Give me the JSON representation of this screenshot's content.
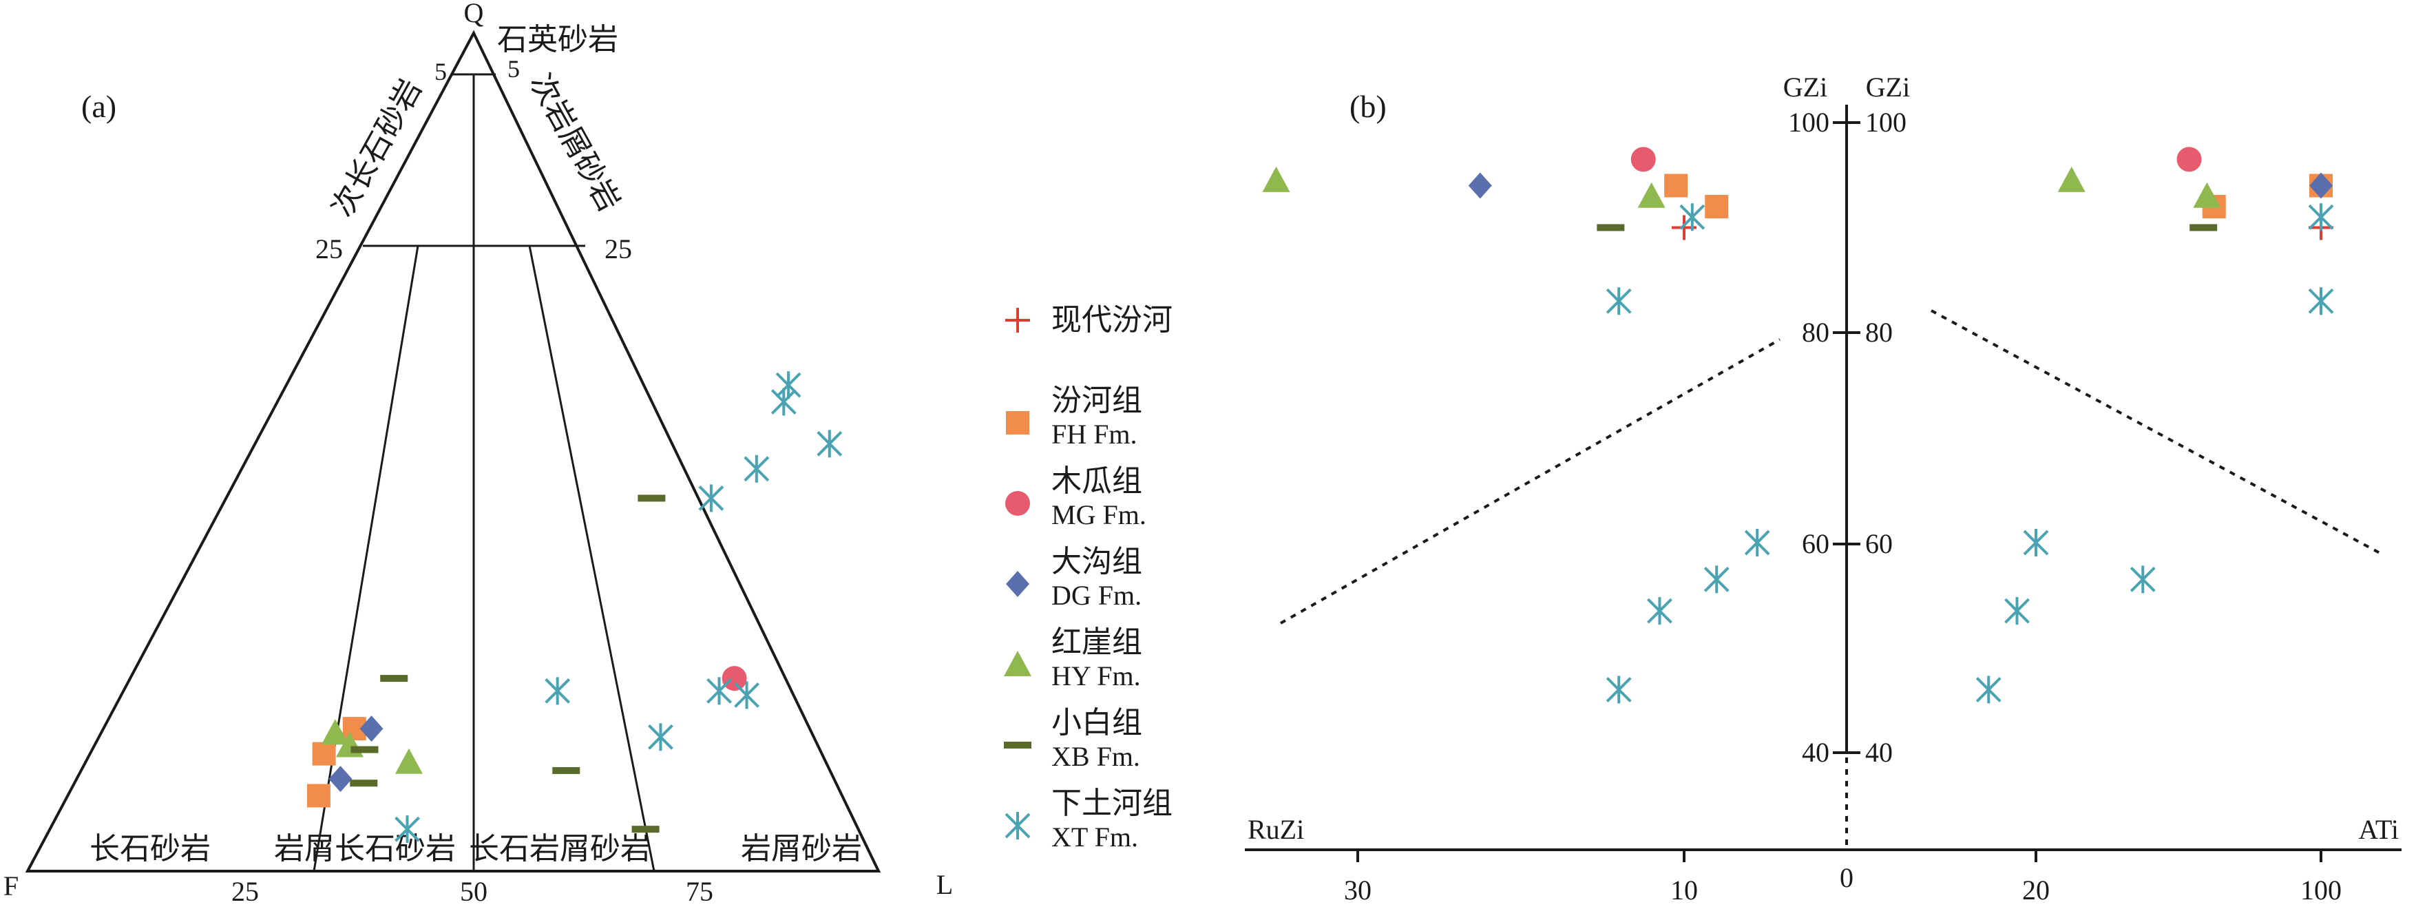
{
  "colors": {
    "present": "#e03c31",
    "FH": "#f28c4b",
    "MG": "#e85a6e",
    "DG": "#5b6fae",
    "HY": "#8fb84e",
    "XB": "#5a6a2a",
    "XT": "#4aa3b3"
  },
  "legend": [
    {
      "key": "present",
      "marker": "plus",
      "zh": "现代汾河",
      "en": ""
    },
    {
      "key": "FH",
      "marker": "square",
      "zh": "汾河组",
      "en": "FH Fm."
    },
    {
      "key": "MG",
      "marker": "circle",
      "zh": "木瓜组",
      "en": "MG Fm."
    },
    {
      "key": "DG",
      "marker": "diamond",
      "zh": "大沟组",
      "en": "DG Fm."
    },
    {
      "key": "HY",
      "marker": "triangle",
      "zh": "红崖组",
      "en": "HY Fm."
    },
    {
      "key": "XB",
      "marker": "dash",
      "zh": "小白组",
      "en": "XB Fm."
    },
    {
      "key": "XT",
      "marker": "asterisk",
      "zh": "下土河组",
      "en": "XT Fm."
    }
  ],
  "chart_data": [
    {
      "type": "scatter",
      "subtype": "ternary",
      "panel_label": "(a)",
      "vertices": {
        "top": "Q",
        "left": "F",
        "right": "L"
      },
      "base_ticks": [
        "25",
        "50",
        "75"
      ],
      "side_ticks": {
        "left": [
          "5",
          "25"
        ],
        "right": [
          "5",
          "25"
        ]
      },
      "fields": [
        "石英砂岩",
        "次长石砂岩",
        "次岩屑砂岩",
        "长石砂岩",
        "岩屑长石砂岩",
        "长石岩屑砂岩",
        "岩屑砂岩"
      ],
      "series": [
        {
          "key": "FH",
          "points": [
            [
              29.5,
              17
            ],
            [
              27.5,
              14
            ],
            [
              29.5,
              9
            ]
          ]
        },
        {
          "key": "MG",
          "points": [
            [
              71,
              23
            ]
          ]
        },
        {
          "key": "DG",
          "points": [
            [
              31.5,
              17
            ],
            [
              31,
              11
            ]
          ]
        },
        {
          "key": "HY",
          "points": [
            [
              27.5,
              16.5
            ],
            [
              30,
              15
            ],
            [
              38,
              13
            ]
          ]
        },
        {
          "key": "XB",
          "points": [
            [
              31,
              23
            ],
            [
              32,
              14.5
            ],
            [
              34,
              10.5
            ],
            [
              50,
              44.5
            ],
            [
              57,
              12
            ],
            [
              70,
              5
            ]
          ]
        },
        {
          "key": "XT",
          "points": [
            [
              59,
              58
            ],
            [
              59.5,
              56
            ],
            [
              60.5,
              48
            ],
            [
              67.5,
              51
            ],
            [
              57,
              44.5
            ],
            [
              51,
              21.5
            ],
            [
              42,
              5
            ],
            [
              66,
              16
            ],
            [
              70,
              21.5
            ],
            [
              73.5,
              21
            ]
          ]
        }
      ]
    },
    {
      "type": "scatter",
      "panel_label": "(b)",
      "x_left_label": "RuZi",
      "x_right_label": "ATi",
      "y_label": "GZi",
      "x_ticks_left": [
        "30",
        "10"
      ],
      "x_tick_center": "0",
      "x_ticks_right": [
        "20",
        "100"
      ],
      "y_ticks": [
        "100",
        "80",
        "60",
        "40"
      ],
      "ylim": [
        30,
        100
      ],
      "left": {
        "label": "RuZi",
        "series": [
          {
            "key": "present",
            "points": [
              [
                10,
                90
              ]
            ]
          },
          {
            "key": "FH",
            "points": [
              [
                10.5,
                94
              ],
              [
                8,
                92
              ]
            ]
          },
          {
            "key": "MG",
            "points": [
              [
                12.5,
                96.5
              ]
            ]
          },
          {
            "key": "DG",
            "points": [
              [
                22.5,
                94
              ]
            ]
          },
          {
            "key": "HY",
            "points": [
              [
                35,
                94.5
              ],
              [
                12,
                93
              ]
            ]
          },
          {
            "key": "XB",
            "points": [
              [
                14.5,
                90
              ]
            ]
          },
          {
            "key": "XT",
            "points": [
              [
                9.5,
                91
              ],
              [
                14,
                83
              ],
              [
                5.5,
                60
              ],
              [
                8,
                56.5
              ],
              [
                11.5,
                53.5
              ],
              [
                14,
                46
              ]
            ]
          }
        ]
      },
      "right": {
        "label": "ATi",
        "series": [
          {
            "key": "present",
            "points": [
              [
                100,
                90
              ]
            ]
          },
          {
            "key": "FH",
            "points": [
              [
                100,
                94
              ],
              [
                70,
                92
              ]
            ]
          },
          {
            "key": "MG",
            "points": [
              [
                63,
                96.5
              ]
            ]
          },
          {
            "key": "DG",
            "points": [
              [
                100,
                94
              ]
            ]
          },
          {
            "key": "HY",
            "points": [
              [
                30,
                94.5
              ],
              [
                68,
                93
              ]
            ]
          },
          {
            "key": "XB",
            "points": [
              [
                67,
                90
              ]
            ]
          },
          {
            "key": "XT",
            "points": [
              [
                100,
                91
              ],
              [
                100,
                83
              ],
              [
                20,
                60
              ],
              [
                50,
                56.5
              ],
              [
                18,
                53.5
              ],
              [
                15,
                46
              ]
            ]
          }
        ]
      }
    }
  ]
}
